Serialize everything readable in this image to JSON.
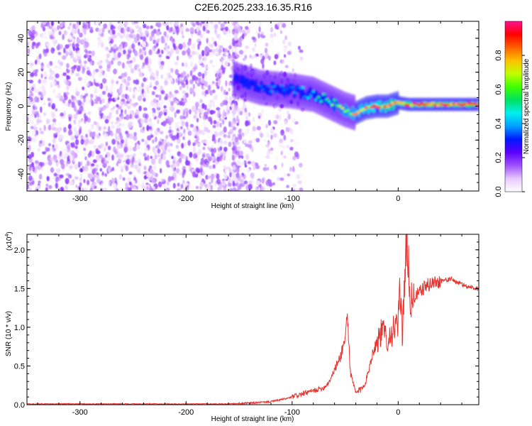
{
  "title": "C2E6.2025.233.16.35.R16",
  "colors": {
    "line": "#e8322e",
    "colormap": [
      "#ffffff",
      "#e6c8ff",
      "#a050ff",
      "#5a00ff",
      "#0018ff",
      "#00a0ff",
      "#00f0f0",
      "#00e060",
      "#40ff00",
      "#c0ff00",
      "#ffc000",
      "#ff6000",
      "#ff0000",
      "#ff1090"
    ]
  },
  "chart_data": [
    {
      "type": "heatmap",
      "title": "C2E6.2025.233.16.35.R16",
      "xlabel": "Height of straight line (km)",
      "ylabel": "Frequency (Hz)",
      "xlim": [
        -350,
        76
      ],
      "ylim": [
        -50,
        50
      ],
      "x_ticks": [
        -300,
        -200,
        -100,
        0
      ],
      "x_tick_labels": [
        "-300",
        "-200",
        "-100",
        "0"
      ],
      "y_ticks": [
        -40,
        -20,
        0,
        20,
        40
      ],
      "y_tick_labels": [
        "-40",
        "-20",
        "0",
        "20",
        "40"
      ],
      "colorbar": {
        "label": "Normalized spectral amplitude",
        "range": [
          0,
          1
        ],
        "ticks": [
          0.0,
          0.2,
          0.4,
          0.6,
          0.8
        ],
        "tick_labels": [
          "0.0",
          "0.2",
          "0.4",
          "0.6",
          "0.8"
        ]
      },
      "noise_region": {
        "x_from": -350,
        "x_to": -110,
        "freq_from": -50,
        "freq_to": 50,
        "amplitude_range": [
          0.0,
          0.18
        ]
      },
      "ridge": [
        {
          "x": -155,
          "freq": 16,
          "amp": 0.25
        },
        {
          "x": -145,
          "freq": 14,
          "amp": 0.3
        },
        {
          "x": -130,
          "freq": 11,
          "amp": 0.32
        },
        {
          "x": -115,
          "freq": 10,
          "amp": 0.35
        },
        {
          "x": -100,
          "freq": 9,
          "amp": 0.38
        },
        {
          "x": -90,
          "freq": 8,
          "amp": 0.4
        },
        {
          "x": -80,
          "freq": 7,
          "amp": 0.45
        },
        {
          "x": -70,
          "freq": 4,
          "amp": 0.55
        },
        {
          "x": -60,
          "freq": 1,
          "amp": 0.62
        },
        {
          "x": -50,
          "freq": -2,
          "amp": 0.7
        },
        {
          "x": -40,
          "freq": -4,
          "amp": 0.75
        },
        {
          "x": -30,
          "freq": -1,
          "amp": 0.8
        },
        {
          "x": -20,
          "freq": 0,
          "amp": 0.85
        },
        {
          "x": -10,
          "freq": 0,
          "amp": 0.9
        },
        {
          "x": 0,
          "freq": 2,
          "amp": 0.92
        },
        {
          "x": 10,
          "freq": 1,
          "amp": 0.93
        },
        {
          "x": 20,
          "freq": 1,
          "amp": 0.95
        },
        {
          "x": 40,
          "freq": 1,
          "amp": 0.96
        },
        {
          "x": 60,
          "freq": 1,
          "amp": 0.97
        },
        {
          "x": 76,
          "freq": 1,
          "amp": 0.97
        }
      ]
    },
    {
      "type": "line",
      "title": "",
      "xlabel": "Height of straight line (km)",
      "ylabel": "SNR (10 * v/v)",
      "y_multiplier_label": "(x10",
      "y_multiplier_exp": "4",
      "y_multiplier_close": ")",
      "xlim": [
        -350,
        76
      ],
      "ylim": [
        0,
        2.2
      ],
      "x_ticks": [
        -300,
        -200,
        -100,
        0
      ],
      "x_tick_labels": [
        "-300",
        "-200",
        "-100",
        "0"
      ],
      "y_ticks": [
        0.0,
        0.5,
        1.0,
        1.5,
        2.0
      ],
      "y_tick_labels": [
        "0.0",
        "0.5",
        "1.0",
        "1.5",
        "2.0"
      ],
      "series": [
        {
          "name": "SNR",
          "x": [
            -350,
            -300,
            -250,
            -200,
            -160,
            -140,
            -120,
            -105,
            -100,
            -90,
            -80,
            -70,
            -65,
            -60,
            -55,
            -50,
            -48,
            -45,
            -40,
            -35,
            -30,
            -25,
            -22,
            -20,
            -15,
            -12,
            -10,
            -5,
            0,
            2,
            4,
            6,
            8,
            10,
            12,
            15,
            20,
            25,
            30,
            40,
            50,
            60,
            70,
            76
          ],
          "y": [
            0.01,
            0.01,
            0.01,
            0.01,
            0.01,
            0.02,
            0.04,
            0.08,
            0.1,
            0.14,
            0.18,
            0.22,
            0.3,
            0.45,
            0.6,
            0.85,
            1.18,
            0.4,
            0.15,
            0.2,
            0.32,
            0.62,
            0.75,
            0.82,
            0.95,
            0.9,
            0.85,
            0.95,
            1.05,
            1.5,
            0.9,
            1.65,
            2.0,
            1.75,
            1.3,
            1.38,
            1.45,
            1.52,
            1.56,
            1.6,
            1.62,
            1.55,
            1.51,
            1.5
          ]
        }
      ]
    }
  ]
}
